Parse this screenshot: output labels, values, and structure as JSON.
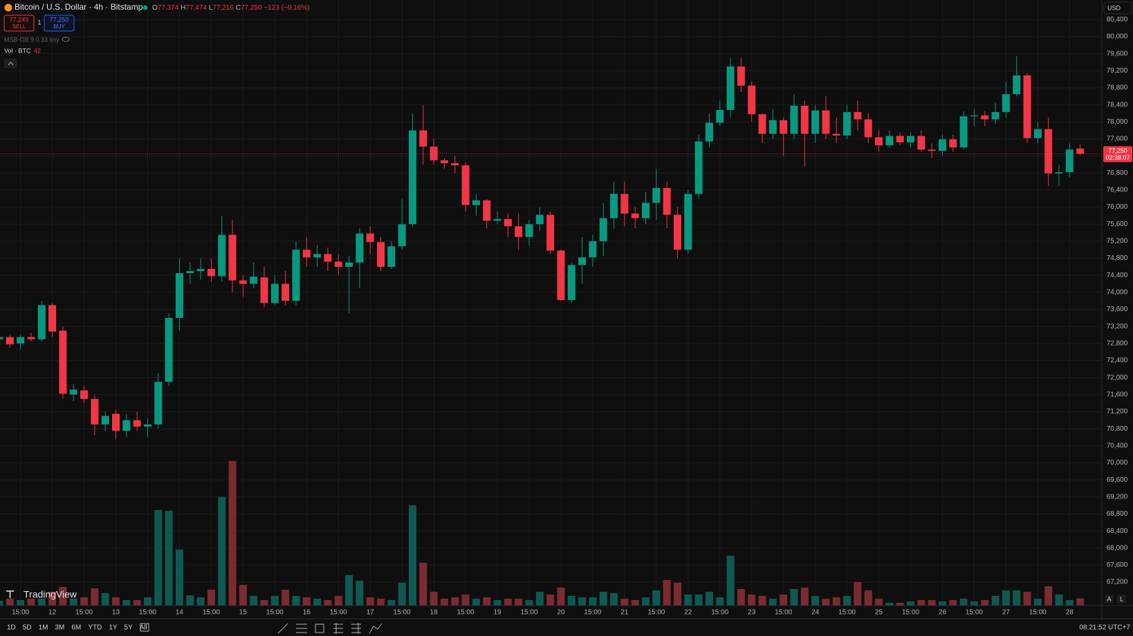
{
  "header": {
    "symbol": "Bitcoin / U.S. Dollar · 4h · Bitstamp",
    "ohlc": [
      {
        "label": "O",
        "value": "77,374"
      },
      {
        "label": "H",
        "value": "77,474"
      },
      {
        "label": "L",
        "value": "77,216"
      },
      {
        "label": "C",
        "value": "77,250"
      }
    ],
    "change": "−123 (−0.16%)"
  },
  "trade": {
    "sell_price": "77,249",
    "sell": "SELL",
    "quantity": "1",
    "buy_price": "77,250",
    "buy": "BUY"
  },
  "indicators": {
    "ob": "MSB-OB 9 0.33 tiny",
    "volume": "Vol · BTC"
  },
  "currency": "USD",
  "logo": "TradingView",
  "footer": {
    "timeframes": [
      "1D",
      "5D",
      "1M",
      "3M",
      "6M",
      "YTD",
      "1Y",
      "5Y",
      "All"
    ],
    "clock": "08:21:52 UTC+7",
    "scale_buttons": [
      "A",
      "L"
    ]
  },
  "chart_data": {
    "type": "candlestick",
    "categories": [
      null,
      null,
      "15:00",
      null,
      null,
      "12",
      null,
      null,
      "15:00",
      null,
      null,
      "13",
      null,
      null,
      "15:00",
      null,
      null,
      "14",
      null,
      null,
      "15:00",
      null,
      null,
      "15",
      null,
      null,
      "15:00",
      null,
      null,
      "16",
      null,
      null,
      "15:00",
      null,
      null,
      "17",
      null,
      null,
      "15:00",
      null,
      null,
      "18",
      null,
      null,
      "15:00",
      null,
      null,
      "19",
      null,
      null,
      "15:00",
      null,
      null,
      "20",
      null,
      null,
      "15:00",
      null,
      null,
      "21",
      null,
      null,
      "15:00",
      null,
      null,
      "22",
      null,
      null,
      "15:00",
      null,
      null,
      "23",
      null,
      null,
      "15:00",
      null,
      null,
      "24",
      null,
      null,
      "15:00",
      null,
      null,
      "25",
      null,
      null,
      "15:00",
      null,
      null,
      "26",
      null,
      null,
      "15:00",
      null,
      null,
      "27",
      null,
      null,
      "15:00",
      null,
      null,
      "28",
      null
    ],
    "open": [
      72900,
      72950,
      72800,
      72950,
      72900,
      73700,
      73100,
      71600,
      71700,
      71500,
      70900,
      71150,
      70750,
      71000,
      70850,
      70900,
      71900,
      73400,
      74450,
      74500,
      74550,
      74380,
      75350,
      74280,
      74200,
      74350,
      73750,
      74200,
      73800,
      75000,
      74820,
      74900,
      74720,
      74600,
      74700,
      75380,
      75180,
      74600,
      75080,
      75600,
      77800,
      77420,
      77100,
      77030,
      76980,
      76050,
      76160,
      75680,
      75720,
      75550,
      75300,
      75600,
      75820,
      74980,
      73820,
      74640,
      74820,
      75200,
      75740,
      76310,
      75850,
      75740,
      76100,
      76450,
      75820,
      75000,
      76310,
      77540,
      77980,
      78280,
      79300,
      78850,
      78180,
      77720,
      78040,
      77720,
      78380,
      77720,
      78270,
      77720,
      77680,
      78230,
      78060,
      77640,
      77450,
      77670,
      77520,
      77670,
      77350,
      77320,
      77590,
      77400,
      78130,
      78150,
      78060,
      78230,
      78650,
      79090,
      77620,
      77830,
      76790,
      76820,
      77374
    ],
    "high": [
      73000,
      73000,
      73000,
      73050,
      73800,
      73750,
      73200,
      71850,
      71800,
      71600,
      71200,
      71250,
      71150,
      71200,
      71050,
      72100,
      73500,
      74800,
      74700,
      74800,
      74800,
      75800,
      75700,
      74400,
      74700,
      74600,
      74400,
      74500,
      75200,
      75300,
      75100,
      75050,
      74900,
      74850,
      75500,
      75550,
      75300,
      75200,
      76200,
      78200,
      78400,
      77600,
      77150,
      77200,
      77050,
      76300,
      76200,
      75900,
      75850,
      75850,
      75700,
      76000,
      75900,
      75000,
      74700,
      75300,
      75350,
      76100,
      76600,
      76600,
      76000,
      76350,
      76900,
      76600,
      76000,
      76400,
      77700,
      78200,
      78500,
      79500,
      79500,
      78950,
      78200,
      78300,
      78100,
      78650,
      78500,
      78400,
      78600,
      78100,
      78400,
      78500,
      78200,
      77800,
      77800,
      77750,
      77750,
      77800,
      77500,
      77700,
      77700,
      78250,
      78300,
      78250,
      78450,
      78950,
      79550,
      79150,
      78000,
      78100,
      77000,
      77500,
      77474
    ],
    "low": [
      72850,
      72700,
      72650,
      72850,
      72850,
      72950,
      71500,
      71450,
      71400,
      70650,
      70750,
      70550,
      70600,
      70750,
      70600,
      70800,
      71800,
      73100,
      74200,
      74300,
      74250,
      74250,
      74000,
      73900,
      74100,
      73650,
      73700,
      73700,
      73700,
      74600,
      74600,
      74500,
      74400,
      73500,
      74100,
      74900,
      74500,
      74550,
      75000,
      75550,
      77000,
      77000,
      76900,
      76800,
      75900,
      75800,
      75500,
      75600,
      75300,
      75000,
      75100,
      75450,
      74900,
      73800,
      73750,
      74200,
      74600,
      74850,
      75500,
      75550,
      75500,
      75600,
      75700,
      75500,
      74800,
      74900,
      76200,
      77400,
      77900,
      78100,
      78700,
      78000,
      77500,
      77600,
      77200,
      77600,
      76950,
      77500,
      77600,
      77500,
      77600,
      77800,
      77500,
      77300,
      77400,
      77450,
      77400,
      77300,
      77150,
      77200,
      77300,
      77350,
      77900,
      77900,
      77950,
      78100,
      78600,
      77500,
      77500,
      76500,
      76500,
      76700,
      77216
    ],
    "close": [
      72950,
      72780,
      72950,
      72900,
      73700,
      73080,
      71620,
      71720,
      71500,
      70900,
      71100,
      70750,
      71000,
      70850,
      70900,
      71900,
      73400,
      74450,
      74500,
      74550,
      74380,
      75350,
      74280,
      74200,
      74370,
      73750,
      74200,
      73800,
      75000,
      74820,
      74900,
      74720,
      74600,
      74700,
      75380,
      75180,
      74600,
      75080,
      75600,
      77800,
      77420,
      77100,
      77030,
      76980,
      76050,
      76160,
      75680,
      75720,
      75550,
      75300,
      75600,
      75820,
      74980,
      73820,
      74640,
      74820,
      75200,
      75740,
      76310,
      75850,
      75740,
      76100,
      76450,
      75820,
      75000,
      76310,
      77540,
      77980,
      78280,
      79300,
      78850,
      78180,
      77720,
      78040,
      77720,
      78380,
      77720,
      78270,
      77720,
      77680,
      78230,
      78060,
      77640,
      77450,
      77670,
      77520,
      77670,
      77350,
      77320,
      77590,
      77400,
      78130,
      78150,
      78060,
      78230,
      78650,
      79090,
      77620,
      77830,
      76790,
      76820,
      77350,
      77250
    ],
    "volume": [
      28,
      40,
      32,
      40,
      40,
      80,
      108,
      40,
      48,
      100,
      72,
      48,
      32,
      32,
      48,
      552,
      548,
      324,
      60,
      48,
      92,
      628,
      836,
      120,
      56,
      32,
      56,
      92,
      56,
      48,
      40,
      32,
      56,
      176,
      144,
      48,
      40,
      32,
      132,
      580,
      248,
      80,
      40,
      48,
      64,
      40,
      48,
      32,
      40,
      40,
      32,
      80,
      64,
      104,
      56,
      48,
      48,
      80,
      72,
      40,
      32,
      48,
      88,
      148,
      132,
      64,
      64,
      80,
      48,
      288,
      96,
      64,
      56,
      40,
      64,
      96,
      104,
      56,
      40,
      48,
      56,
      136,
      88,
      40,
      16,
      16,
      24,
      32,
      32,
      24,
      32,
      40,
      24,
      32,
      56,
      88,
      88,
      80,
      40,
      112,
      64,
      32,
      42
    ],
    "ylim": [
      66650,
      80860
    ],
    "yticks": [
      {
        "value": 80400,
        "label": "80,400"
      },
      {
        "value": 80000,
        "label": "80,000"
      },
      {
        "value": 79600,
        "label": "79,600"
      },
      {
        "value": 79200,
        "label": "79,200"
      },
      {
        "value": 78800,
        "label": "78,800"
      },
      {
        "value": 78400,
        "label": "78,400"
      },
      {
        "value": 78000,
        "label": "78,000"
      },
      {
        "value": 77600,
        "label": "77,600"
      },
      {
        "value": 77200,
        "label": "77,200"
      },
      {
        "value": 76800,
        "label": "76,800"
      },
      {
        "value": 76400,
        "label": "76,400"
      },
      {
        "value": 76000,
        "label": "76,000"
      },
      {
        "value": 75600,
        "label": "75,600"
      },
      {
        "value": 75200,
        "label": "75,200"
      },
      {
        "value": 74800,
        "label": "74,800"
      },
      {
        "value": 74400,
        "label": "74,400"
      },
      {
        "value": 74000,
        "label": "74,000"
      },
      {
        "value": 73600,
        "label": "73,600"
      },
      {
        "value": 73200,
        "label": "73,200"
      },
      {
        "value": 72800,
        "label": "72,800"
      },
      {
        "value": 72400,
        "label": "72,400"
      },
      {
        "value": 72000,
        "label": "72,000"
      },
      {
        "value": 71600,
        "label": "71,600"
      },
      {
        "value": 71200,
        "label": "71,200"
      },
      {
        "value": 70800,
        "label": "70,800"
      },
      {
        "value": 70400,
        "label": "70,400"
      },
      {
        "value": 70000,
        "label": "70,000"
      },
      {
        "value": 69600,
        "label": "69,600"
      },
      {
        "value": 69200,
        "label": "69,200"
      },
      {
        "value": 68800,
        "label": "68,800"
      },
      {
        "value": 68400,
        "label": "68,400"
      },
      {
        "value": 68000,
        "label": "68,000"
      },
      {
        "value": 67600,
        "label": "67,600"
      },
      {
        "value": 67200,
        "label": "67,200"
      }
    ],
    "volume_ylim": [
      0,
      3500
    ],
    "last_price": {
      "value": 77250,
      "label": "77,250",
      "countdown": "02:38:07"
    },
    "up_color": "#089981",
    "down_color": "#f23645",
    "volume_up_color": "#0e5a52",
    "volume_down_color": "#7c2b31",
    "grid": true
  }
}
